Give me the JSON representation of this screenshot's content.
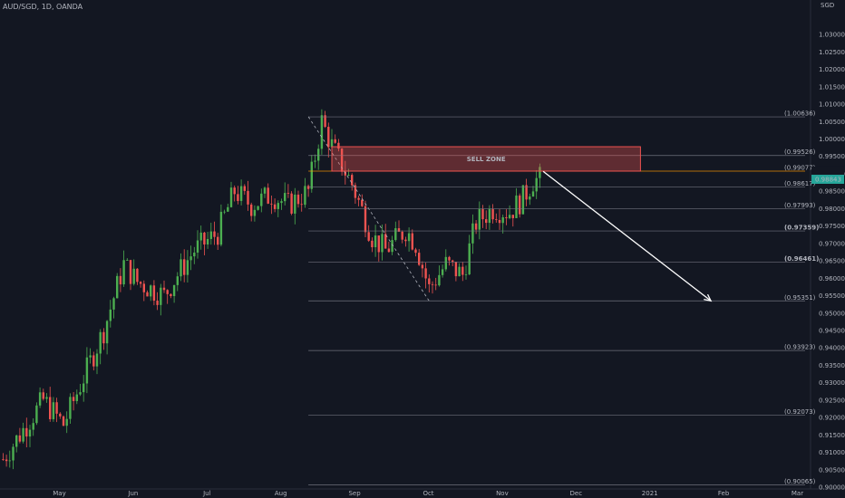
{
  "header": {
    "symbol": "AUD/SGD, 1D, OANDA",
    "currency": "SGD"
  },
  "chart_data": {
    "type": "candlestick",
    "ylim": [
      0.9,
      1.035
    ],
    "price_labels": [
      "1.03000",
      "1.02500",
      "1.02000",
      "1.01500",
      "1.01000",
      "1.00500",
      "1.00000",
      "0.99500",
      "0.99000",
      "0.98500",
      "0.98000",
      "0.97500",
      "0.97000",
      "0.96500",
      "0.96000",
      "0.95500",
      "0.95000",
      "0.94500",
      "0.94000",
      "0.93500",
      "0.93000",
      "0.92500",
      "0.92000",
      "0.91500",
      "0.91000",
      "0.90500",
      "0.90000"
    ],
    "price_values": [
      1.03,
      1.025,
      1.02,
      1.015,
      1.01,
      1.005,
      1.0,
      0.995,
      0.99,
      0.985,
      0.98,
      0.975,
      0.97,
      0.965,
      0.96,
      0.955,
      0.95,
      0.945,
      0.94,
      0.935,
      0.93,
      0.925,
      0.92,
      0.915,
      0.91,
      0.905,
      0.9
    ],
    "month_labels": [
      "May",
      "Jun",
      "Jul",
      "Aug",
      "Sep",
      "Oct",
      "Nov",
      "Dec",
      "2021",
      "Feb",
      "Mar"
    ],
    "month_index": [
      3,
      25,
      47,
      69,
      91,
      113,
      135,
      157,
      179,
      201,
      223
    ],
    "fib_levels": [
      {
        "label": "(1.00636)",
        "value": 1.00636,
        "emphasis": false,
        "color": "#b2b5be"
      },
      {
        "label": "(0.99526)",
        "value": 0.99526,
        "emphasis": false,
        "color": "#b2b5be"
      },
      {
        "label": "(0.99077)",
        "value": 0.99077,
        "emphasis": false,
        "color": "#ff9800"
      },
      {
        "label": "(0.98617)",
        "value": 0.98617,
        "emphasis": false,
        "color": "#b2b5be"
      },
      {
        "label": "(0.97993)",
        "value": 0.97993,
        "emphasis": false,
        "color": "#b2b5be"
      },
      {
        "label": "(0.97359)",
        "value": 0.97359,
        "emphasis": true,
        "color": "#ffffff"
      },
      {
        "label": "(0.96461)",
        "value": 0.96461,
        "emphasis": true,
        "color": "#ffffff"
      },
      {
        "label": "(0.95351)",
        "value": 0.95351,
        "emphasis": false,
        "color": "#b2b5be"
      },
      {
        "label": "(0.93923)",
        "value": 0.93923,
        "emphasis": false,
        "color": "#b2b5be"
      },
      {
        "label": "(0.92073)",
        "value": 0.92073,
        "emphasis": false,
        "color": "#b2b5be"
      },
      {
        "label": "(0.90065)",
        "value": 0.90065,
        "emphasis": false,
        "color": "#b2b5be"
      }
    ],
    "last_price": {
      "label": "0.98843",
      "value": 0.98843
    },
    "sell_zone": {
      "label": "SELL ZONE",
      "low": 0.99077,
      "high": 0.99778,
      "start_index": 98,
      "end_index": 190
    },
    "projection": {
      "start_index": 161,
      "start_price": 0.9907,
      "end_index": 211,
      "end_price": 0.9535
    },
    "fib_anchor": {
      "start_index": 91,
      "start_price": 1.0064,
      "end_index": 127,
      "end_price": 0.9535
    },
    "colors": {
      "up": "#4caf50",
      "down": "#ef5350",
      "zone": "#ef5350",
      "accent": "#ff9800",
      "last": "#26a69a"
    }
  }
}
